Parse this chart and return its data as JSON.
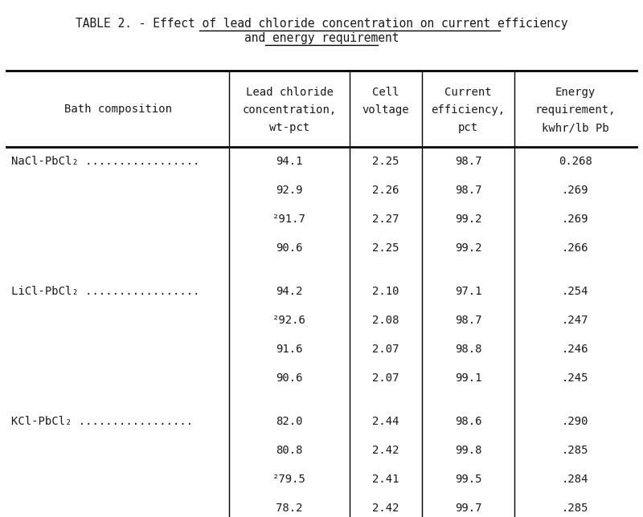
{
  "title_prefix": "TABLE 2. - ",
  "title_underlined1": "Effect of lead chloride concentration on current efficiency",
  "title_underlined2": "and energy requirement",
  "col0_header": "Bath composition",
  "col1_header": [
    "Lead chloride",
    "concentration,",
    "wt-pct"
  ],
  "col2_header": [
    "Cell",
    "voltage"
  ],
  "col3_header": [
    "Current",
    "efficiency,",
    "pct"
  ],
  "col4_header": [
    "Energy",
    "requirement,",
    "kwhr/lb Pb"
  ],
  "sections": [
    {
      "label": "NaCl-PbCl₂ .................",
      "rows": [
        [
          "94.1",
          "2.25",
          "98.7",
          "0.268"
        ],
        [
          "92.9",
          "2.26",
          "98.7",
          ".269"
        ],
        [
          "²91.7",
          "2.27",
          "99.2",
          ".269"
        ],
        [
          "90.6",
          "2.25",
          "99.2",
          ".266"
        ]
      ]
    },
    {
      "label": "LiCl-PbCl₂ .................",
      "rows": [
        [
          "94.2",
          "2.10",
          "97.1",
          ".254"
        ],
        [
          "²92.6",
          "2.08",
          "98.7",
          ".247"
        ],
        [
          "91.6",
          "2.07",
          "98.8",
          ".246"
        ],
        [
          "90.6",
          "2.07",
          "99.1",
          ".245"
        ]
      ]
    },
    {
      "label": "KCl-PbCl₂ .................",
      "rows": [
        [
          "82.0",
          "2.44",
          "98.6",
          ".290"
        ],
        [
          "80.8",
          "2.42",
          "99.8",
          ".285"
        ],
        [
          "²79.5",
          "2.41",
          "99.5",
          ".284"
        ],
        [
          "78.2",
          "2.42",
          "99.7",
          ".285"
        ]
      ]
    }
  ],
  "bg_color": "#ffffff",
  "text_color": "#1a1a1a",
  "font_size": 10.0,
  "title_font_size": 10.5
}
